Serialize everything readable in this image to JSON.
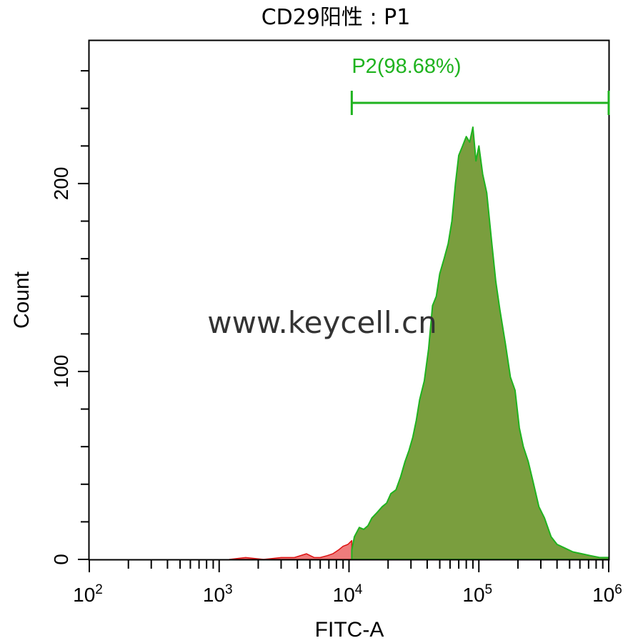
{
  "colors": {
    "gate": "#1fb31f",
    "gate_fill": "#7a9e3e",
    "negative_fill": "#ef7c7c",
    "negative_line": "#dd1111",
    "axis": "#000000"
  },
  "watermark": "www.keycell.cn",
  "chart_data": {
    "type": "area",
    "title": "CD29阳性 : P1",
    "xlabel": "FITC-A",
    "ylabel": "Count",
    "x_scale": "log",
    "xlim": [
      100,
      1000000
    ],
    "ylim": [
      0,
      276
    ],
    "x_ticks": [
      {
        "base": "10",
        "exp": "2",
        "value": 100
      },
      {
        "base": "10",
        "exp": "3",
        "value": 1000
      },
      {
        "base": "10",
        "exp": "4",
        "value": 10000
      },
      {
        "base": "10",
        "exp": "5",
        "value": 100000
      },
      {
        "base": "10",
        "exp": "6",
        "value": 1000000
      }
    ],
    "y_ticks": [
      "0",
      "100",
      "200"
    ],
    "y_tick_values": [
      0,
      100,
      200
    ],
    "grid": false,
    "gate": {
      "label": "P2(98.68%)",
      "range": [
        10500,
        1000000
      ]
    },
    "series": [
      {
        "x": [
          1200,
          1600,
          2200,
          3000,
          3800,
          4700,
          5400,
          6000,
          6800,
          7500,
          8300,
          9000,
          9800,
          10500
        ],
        "values": [
          0,
          1,
          0,
          1,
          1,
          3,
          1,
          1,
          2,
          3,
          5,
          7,
          8,
          10
        ]
      },
      {
        "x": [
          10500,
          11000,
          12000,
          13000,
          14000,
          15000,
          16500,
          18000,
          19500,
          21000,
          23000,
          25000,
          27000,
          29000,
          31000,
          33000,
          35000,
          38000,
          41000,
          44000,
          47000,
          50000,
          54000,
          58000,
          62000,
          66000,
          70000,
          75000,
          80000,
          85000,
          90000,
          95000,
          100000,
          107000,
          115000,
          125000,
          135000,
          145000,
          160000,
          175000,
          190000,
          205000,
          220000,
          240000,
          260000,
          290000,
          320000,
          360000,
          400000,
          460000,
          530000,
          620000,
          720000,
          850000,
          1000000
        ],
        "values": [
          5,
          12,
          17,
          16,
          18,
          22,
          25,
          28,
          30,
          35,
          37,
          44,
          52,
          58,
          65,
          74,
          85,
          95,
          112,
          135,
          140,
          152,
          160,
          168,
          180,
          200,
          215,
          220,
          225,
          222,
          230,
          212,
          220,
          205,
          195,
          170,
          148,
          133,
          115,
          97,
          90,
          70,
          60,
          52,
          42,
          28,
          22,
          12,
          8,
          6,
          4,
          3,
          2,
          1,
          1
        ]
      }
    ]
  }
}
